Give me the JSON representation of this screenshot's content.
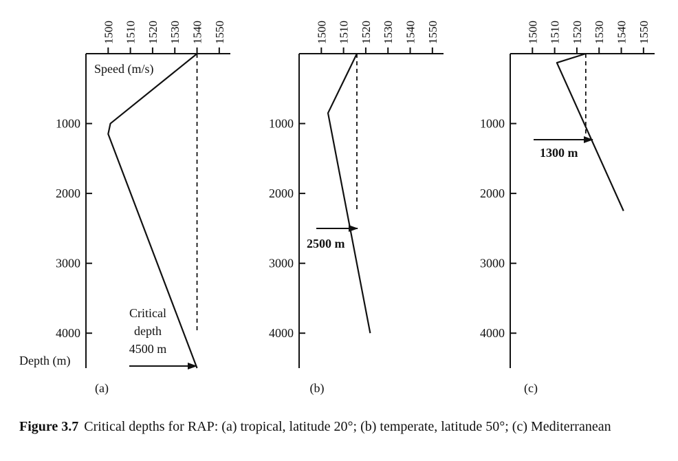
{
  "caption": {
    "label": "Figure 3.7",
    "text": "Critical depths for RAP: (a) tropical, latitude 20°; (b) temperate, latitude 50°; (c) Mediterranean"
  },
  "chart_data": [
    {
      "type": "line",
      "panel_label": "(a)",
      "xlabel": "Speed (m/s)",
      "ylabel": "Depth (m)",
      "x_ticks": [
        1500,
        1510,
        1520,
        1530,
        1540,
        1550
      ],
      "y_ticks": [
        1000,
        2000,
        3000,
        4000
      ],
      "xlim": [
        1490,
        1555
      ],
      "ylim": [
        0,
        4500
      ],
      "series": [
        {
          "name": "sound speed profile",
          "style": "solid",
          "points": [
            [
              1540,
              0
            ],
            [
              1501,
              1000
            ],
            [
              1500,
              1150
            ],
            [
              1540,
              4500
            ]
          ]
        },
        {
          "name": "surface speed reference",
          "style": "dashed",
          "points": [
            [
              1540,
              0
            ],
            [
              1540,
              4000
            ]
          ]
        }
      ],
      "annotation": {
        "lines": [
          "Critical",
          "depth",
          "4500 m"
        ],
        "arrow_depth": 4500
      }
    },
    {
      "type": "line",
      "panel_label": "(b)",
      "x_ticks": [
        1500,
        1510,
        1520,
        1530,
        1540,
        1550
      ],
      "y_ticks": [
        1000,
        2000,
        3000,
        4000
      ],
      "xlim": [
        1490,
        1555
      ],
      "ylim": [
        0,
        4500
      ],
      "series": [
        {
          "name": "sound speed profile",
          "style": "solid",
          "points": [
            [
              1516,
              0
            ],
            [
              1503,
              850
            ],
            [
              1522,
              4000
            ]
          ]
        },
        {
          "name": "surface speed reference",
          "style": "dashed",
          "points": [
            [
              1516,
              0
            ],
            [
              1516,
              2250
            ]
          ]
        }
      ],
      "annotation": {
        "lines": [
          "2500 m"
        ],
        "arrow_depth": 2500
      }
    },
    {
      "type": "line",
      "panel_label": "(c)",
      "x_ticks": [
        1500,
        1510,
        1520,
        1530,
        1540,
        1550
      ],
      "y_ticks": [
        1000,
        2000,
        3000,
        4000
      ],
      "xlim": [
        1490,
        1555
      ],
      "ylim": [
        0,
        4500
      ],
      "series": [
        {
          "name": "sound speed profile",
          "style": "solid",
          "points": [
            [
              1524,
              0
            ],
            [
              1511,
              130
            ],
            [
              1541,
              2250
            ]
          ]
        },
        {
          "name": "surface speed reference",
          "style": "dashed",
          "points": [
            [
              1524,
              0
            ],
            [
              1524,
              1150
            ]
          ]
        }
      ],
      "annotation": {
        "lines": [
          "1300 m"
        ],
        "arrow_depth": 1300
      }
    }
  ]
}
